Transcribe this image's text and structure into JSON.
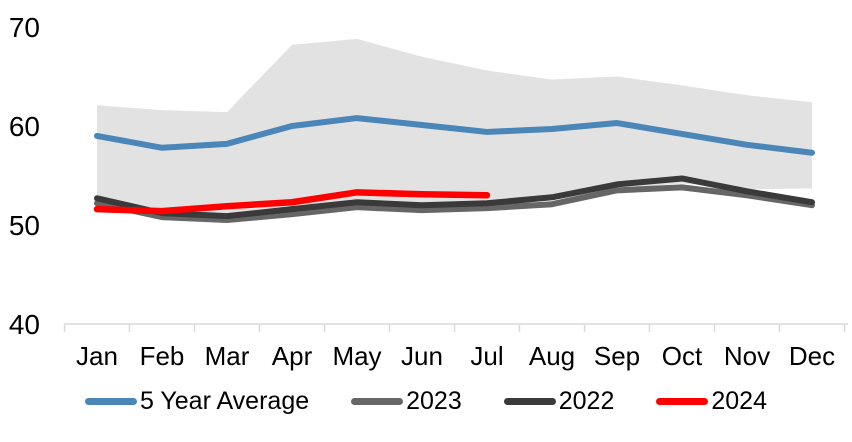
{
  "chart_data": {
    "type": "line",
    "title": "",
    "xlabel": "",
    "ylabel": "",
    "categories": [
      "Jan",
      "Feb",
      "Mar",
      "Apr",
      "May",
      "Jun",
      "Jul",
      "Aug",
      "Sep",
      "Oct",
      "Nov",
      "Dec"
    ],
    "y_ticks": [
      40,
      50,
      60,
      70
    ],
    "ylim": [
      40,
      70
    ],
    "grid": false,
    "legend_position": "bottom",
    "band": {
      "description": "shaded 5-year min-max range",
      "color": "#e2e2e2",
      "upper": [
        62.1,
        61.6,
        61.4,
        68.2,
        68.8,
        67.0,
        65.6,
        64.7,
        65.0,
        64.1,
        63.1,
        62.4
      ],
      "lower": [
        52.3,
        51.4,
        51.1,
        51.7,
        52.1,
        51.9,
        52.1,
        52.5,
        53.7,
        54.2,
        53.6,
        53.7
      ]
    },
    "series": [
      {
        "name": "5 Year Average",
        "color": "#4a86b8",
        "width": 6,
        "values": [
          59.0,
          57.8,
          58.2,
          60.0,
          60.8,
          60.1,
          59.4,
          59.7,
          60.3,
          59.2,
          58.1,
          57.3
        ]
      },
      {
        "name": "2023",
        "color": "#666666",
        "width": 6,
        "values": [
          52.2,
          50.8,
          50.5,
          51.1,
          51.8,
          51.5,
          51.7,
          52.1,
          53.5,
          53.8,
          53.0,
          52.0
        ]
      },
      {
        "name": "2022",
        "color": "#3a3a3a",
        "width": 6,
        "values": [
          52.7,
          51.2,
          50.9,
          51.6,
          52.3,
          52.0,
          52.2,
          52.8,
          54.1,
          54.7,
          53.4,
          52.3
        ]
      },
      {
        "name": "2024",
        "color": "#ff0000",
        "width": 6.5,
        "values": [
          51.6,
          51.4,
          51.9,
          52.3,
          53.3,
          53.1,
          53.0
        ]
      }
    ],
    "axis_color": "#d9d9d9",
    "text_color": "#000000"
  }
}
